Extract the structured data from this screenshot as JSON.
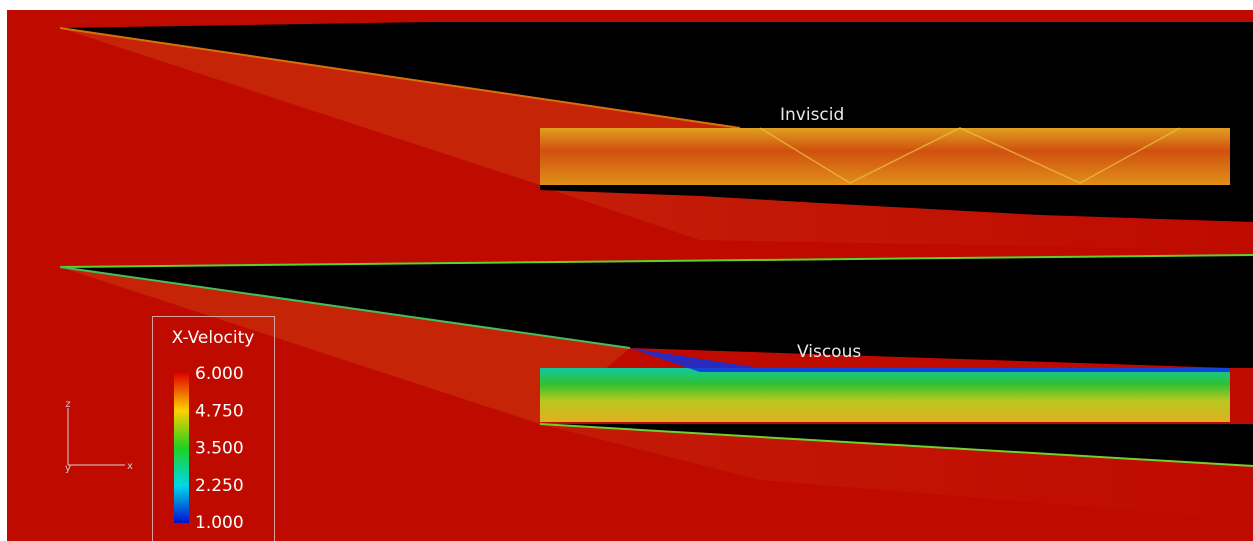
{
  "labels": {
    "inviscid": "Inviscid",
    "viscous": "Viscous"
  },
  "colorbar": {
    "title": "X-Velocity",
    "ticks": [
      "6.000",
      "4.750",
      "3.500",
      "2.250",
      "1.000"
    ]
  },
  "axes": {
    "z": "z",
    "x": "x",
    "y": "y"
  }
}
